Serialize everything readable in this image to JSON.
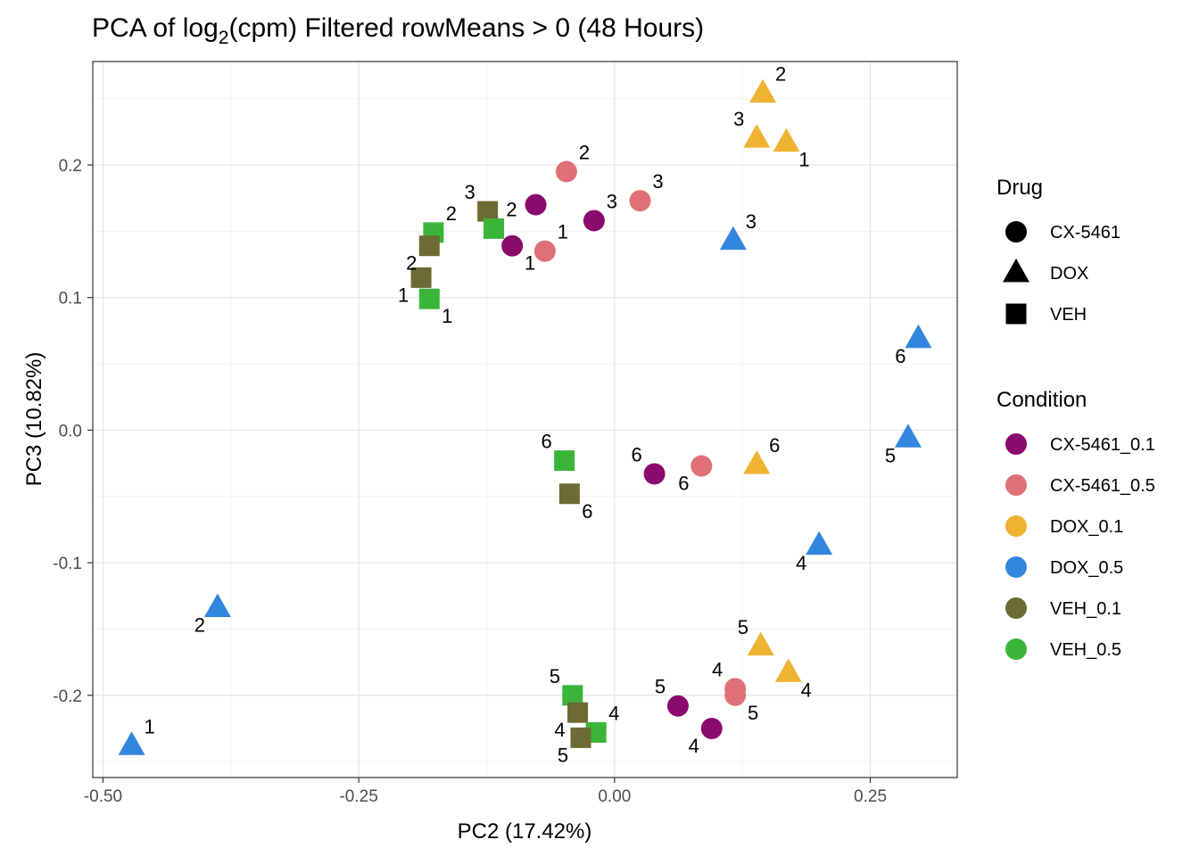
{
  "chart_data": {
    "type": "scatter",
    "title": {
      "prefix": "PCA of log",
      "subscript": "2",
      "suffix": "(cpm) Filtered rowMeans > 0 (48 Hours)"
    },
    "xlabel": "PC2 (17.42%)",
    "ylabel": "PC3 (10.82%)",
    "xlim": [
      -0.51,
      0.335
    ],
    "ylim": [
      -0.262,
      0.278
    ],
    "xticks": [
      -0.5,
      -0.25,
      0.0,
      0.25
    ],
    "xtick_labels": [
      "-0.50",
      "-0.25",
      "0.00",
      "0.25"
    ],
    "yticks": [
      -0.2,
      -0.1,
      0.0,
      0.1,
      0.2
    ],
    "ytick_labels": [
      "-0.2",
      "-0.1",
      "0.0",
      "0.1",
      "0.2"
    ],
    "grid": true,
    "legend_position": "right",
    "legends": {
      "drug": {
        "title": "Drug",
        "items": [
          {
            "label": "CX-5461",
            "shape": "circle"
          },
          {
            "label": "DOX",
            "shape": "triangle"
          },
          {
            "label": "VEH",
            "shape": "square"
          }
        ]
      },
      "condition": {
        "title": "Condition",
        "items": [
          {
            "label": "CX-5461_0.1",
            "color": "#8B0A6E"
          },
          {
            "label": "CX-5461_0.5",
            "color": "#E07077"
          },
          {
            "label": "DOX_0.1",
            "color": "#F0B233"
          },
          {
            "label": "DOX_0.5",
            "color": "#3386DD"
          },
          {
            "label": "VEH_0.1",
            "color": "#6B6B33"
          },
          {
            "label": "VEH_0.5",
            "color": "#3AB53A"
          }
        ]
      }
    },
    "points": [
      {
        "condition": "DOX_0.1",
        "drug": "DOX",
        "x": 0.145,
        "y": 0.254,
        "label": "2",
        "label_pos": "upper-right"
      },
      {
        "condition": "DOX_0.1",
        "drug": "DOX",
        "x": 0.139,
        "y": 0.22,
        "label": "3",
        "label_pos": "upper-left"
      },
      {
        "condition": "DOX_0.1",
        "drug": "DOX",
        "x": 0.168,
        "y": 0.217,
        "label": "1",
        "label_pos": "lower-right"
      },
      {
        "condition": "DOX_0.5",
        "drug": "DOX",
        "x": 0.116,
        "y": 0.143,
        "label": "3",
        "label_pos": "upper-right"
      },
      {
        "condition": "DOX_0.5",
        "drug": "DOX",
        "x": 0.297,
        "y": 0.069,
        "label": "6",
        "label_pos": "lower-left"
      },
      {
        "condition": "DOX_0.5",
        "drug": "DOX",
        "x": 0.287,
        "y": -0.006,
        "label": "5",
        "label_pos": "lower-left"
      },
      {
        "condition": "DOX_0.1",
        "drug": "DOX",
        "x": 0.139,
        "y": -0.026,
        "label": "6",
        "label_pos": "upper-right"
      },
      {
        "condition": "DOX_0.5",
        "drug": "DOX",
        "x": 0.2,
        "y": -0.087,
        "label": "4",
        "label_pos": "lower-left"
      },
      {
        "condition": "DOX_0.1",
        "drug": "DOX",
        "x": 0.143,
        "y": -0.163,
        "label": "5",
        "label_pos": "upper-left"
      },
      {
        "condition": "DOX_0.1",
        "drug": "DOX",
        "x": 0.17,
        "y": -0.183,
        "label": "4",
        "label_pos": "lower-right"
      },
      {
        "condition": "DOX_0.5",
        "drug": "DOX",
        "x": -0.388,
        "y": -0.134,
        "label": "2",
        "label_pos": "lower-left"
      },
      {
        "condition": "DOX_0.5",
        "drug": "DOX",
        "x": -0.472,
        "y": -0.238,
        "label": "1",
        "label_pos": "upper-right"
      },
      {
        "condition": "CX-5461_0.5",
        "drug": "CX-5461",
        "x": -0.047,
        "y": 0.195,
        "label": "2",
        "label_pos": "upper-right"
      },
      {
        "condition": "CX-5461_0.5",
        "drug": "CX-5461",
        "x": 0.025,
        "y": 0.173,
        "label": "3",
        "label_pos": "upper-right"
      },
      {
        "condition": "CX-5461_0.1",
        "drug": "CX-5461",
        "x": -0.077,
        "y": 0.17,
        "label": "",
        "label_pos": "none"
      },
      {
        "condition": "CX-5461_0.1",
        "drug": "CX-5461",
        "x": -0.02,
        "y": 0.158,
        "label": "3",
        "label_pos": "upper-right"
      },
      {
        "condition": "CX-5461_0.5",
        "drug": "CX-5461",
        "x": -0.068,
        "y": 0.135,
        "label": "1",
        "label_pos": "upper-right"
      },
      {
        "condition": "CX-5461_0.1",
        "drug": "CX-5461",
        "x": -0.1,
        "y": 0.139,
        "label": "1",
        "label_pos": "lower-right"
      },
      {
        "condition": "CX-5461_0.5",
        "drug": "CX-5461",
        "x": 0.085,
        "y": -0.027,
        "label": "6",
        "label_pos": "lower-left"
      },
      {
        "condition": "CX-5461_0.1",
        "drug": "CX-5461",
        "x": 0.039,
        "y": -0.033,
        "label": "6",
        "label_pos": "upper-left"
      },
      {
        "condition": "CX-5461_0.5",
        "drug": "CX-5461",
        "x": 0.118,
        "y": -0.195,
        "label": "4",
        "label_pos": "upper-left"
      },
      {
        "condition": "CX-5461_0.5",
        "drug": "CX-5461",
        "x": 0.118,
        "y": -0.2,
        "label": "5",
        "label_pos": "lower-right"
      },
      {
        "condition": "CX-5461_0.1",
        "drug": "CX-5461",
        "x": 0.062,
        "y": -0.208,
        "label": "5",
        "label_pos": "upper-left"
      },
      {
        "condition": "CX-5461_0.1",
        "drug": "CX-5461",
        "x": 0.095,
        "y": -0.225,
        "label": "4",
        "label_pos": "lower-left"
      },
      {
        "condition": "VEH_0.1",
        "drug": "VEH",
        "x": -0.124,
        "y": 0.165,
        "label": "3",
        "label_pos": "upper-left"
      },
      {
        "condition": "VEH_0.5",
        "drug": "VEH",
        "x": -0.118,
        "y": 0.152,
        "label": "2",
        "label_pos": "upper-right"
      },
      {
        "condition": "VEH_0.5",
        "drug": "VEH",
        "x": -0.177,
        "y": 0.149,
        "label": "2",
        "label_pos": "upper-right"
      },
      {
        "condition": "VEH_0.1",
        "drug": "VEH",
        "x": -0.181,
        "y": 0.139,
        "label": "2",
        "label_pos": "lower-left"
      },
      {
        "condition": "VEH_0.1",
        "drug": "VEH",
        "x": -0.189,
        "y": 0.115,
        "label": "1",
        "label_pos": "lower-left"
      },
      {
        "condition": "VEH_0.5",
        "drug": "VEH",
        "x": -0.181,
        "y": 0.099,
        "label": "1",
        "label_pos": "lower-right"
      },
      {
        "condition": "VEH_0.5",
        "drug": "VEH",
        "x": -0.049,
        "y": -0.023,
        "label": "6",
        "label_pos": "upper-left"
      },
      {
        "condition": "VEH_0.1",
        "drug": "VEH",
        "x": -0.044,
        "y": -0.048,
        "label": "6",
        "label_pos": "lower-right"
      },
      {
        "condition": "VEH_0.5",
        "drug": "VEH",
        "x": -0.041,
        "y": -0.2,
        "label": "5",
        "label_pos": "upper-left"
      },
      {
        "condition": "VEH_0.1",
        "drug": "VEH",
        "x": -0.036,
        "y": -0.213,
        "label": "4",
        "label_pos": "lower-left"
      },
      {
        "condition": "VEH_0.5",
        "drug": "VEH",
        "x": -0.018,
        "y": -0.228,
        "label": "4",
        "label_pos": "upper-right"
      },
      {
        "condition": "VEH_0.1",
        "drug": "VEH",
        "x": -0.033,
        "y": -0.232,
        "label": "5",
        "label_pos": "lower-left"
      }
    ]
  }
}
